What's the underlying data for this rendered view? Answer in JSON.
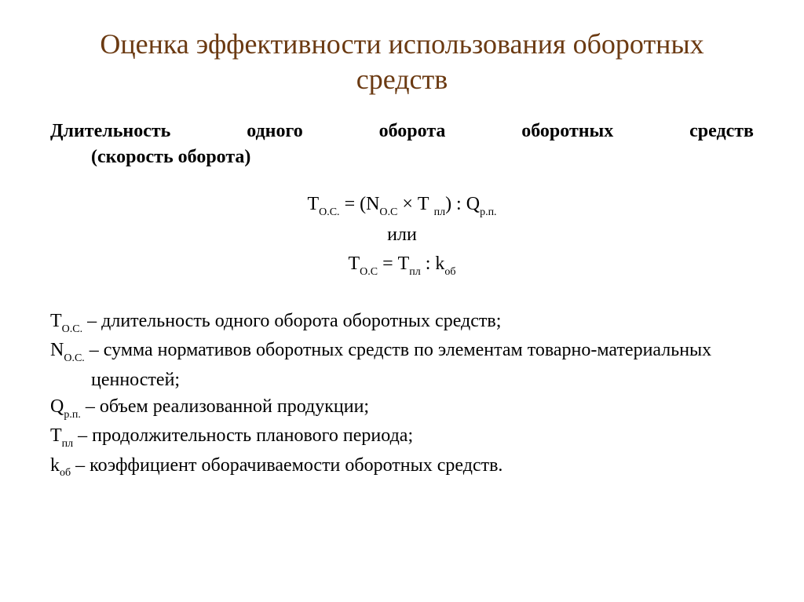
{
  "slide": {
    "title": "Оценка эффективности использования оборотных средств",
    "title_color": "#6b3a12",
    "title_fontsize": 36,
    "background_color": "#ffffff",
    "body_color": "#000000",
    "body_fontsize": 24,
    "font_family": "Georgia, Times New Roman, serif",
    "subtitle_line1": "Длительность одного оборота оборотных средств",
    "subtitle_line2": "(скорость оборота)",
    "formulas": {
      "f1_left_base": "Т",
      "f1_left_sub": "О.С.",
      "f1_eq": " = (N",
      "f1_n_sub": "О.С",
      "f1_mid": " × Т ",
      "f1_t_sub": "пл",
      "f1_mid2": ") : Q",
      "f1_q_sub": "р.п.",
      "connector": "или",
      "f2_left_base": "Т",
      "f2_left_sub": "О.С",
      "f2_eq": " = Т",
      "f2_t_sub": "пл",
      "f2_mid": " : k",
      "f2_k_sub": "об"
    },
    "legend": {
      "l1_sym_base": "Т",
      "l1_sym_sub": "О.С.",
      "l1_text": " – длительность одного оборота оборотных средств;",
      "l2_sym_base": "N",
      "l2_sym_sub": "О.С.",
      "l2_text": " – сумма нормативов оборотных средств по элементам товарно-материальных ценностей;",
      "l3_sym_base": "Q",
      "l3_sym_sub": "р.п.",
      "l3_text": " – объем реализованной продукции;",
      "l4_sym_base": "Т",
      "l4_sym_sub": "пл",
      "l4_text": " – продолжительность планового периода;",
      "l5_sym_base": "k",
      "l5_sym_sub": "об",
      "l5_text": " – коэффициент оборачиваемости оборотных средств."
    }
  }
}
